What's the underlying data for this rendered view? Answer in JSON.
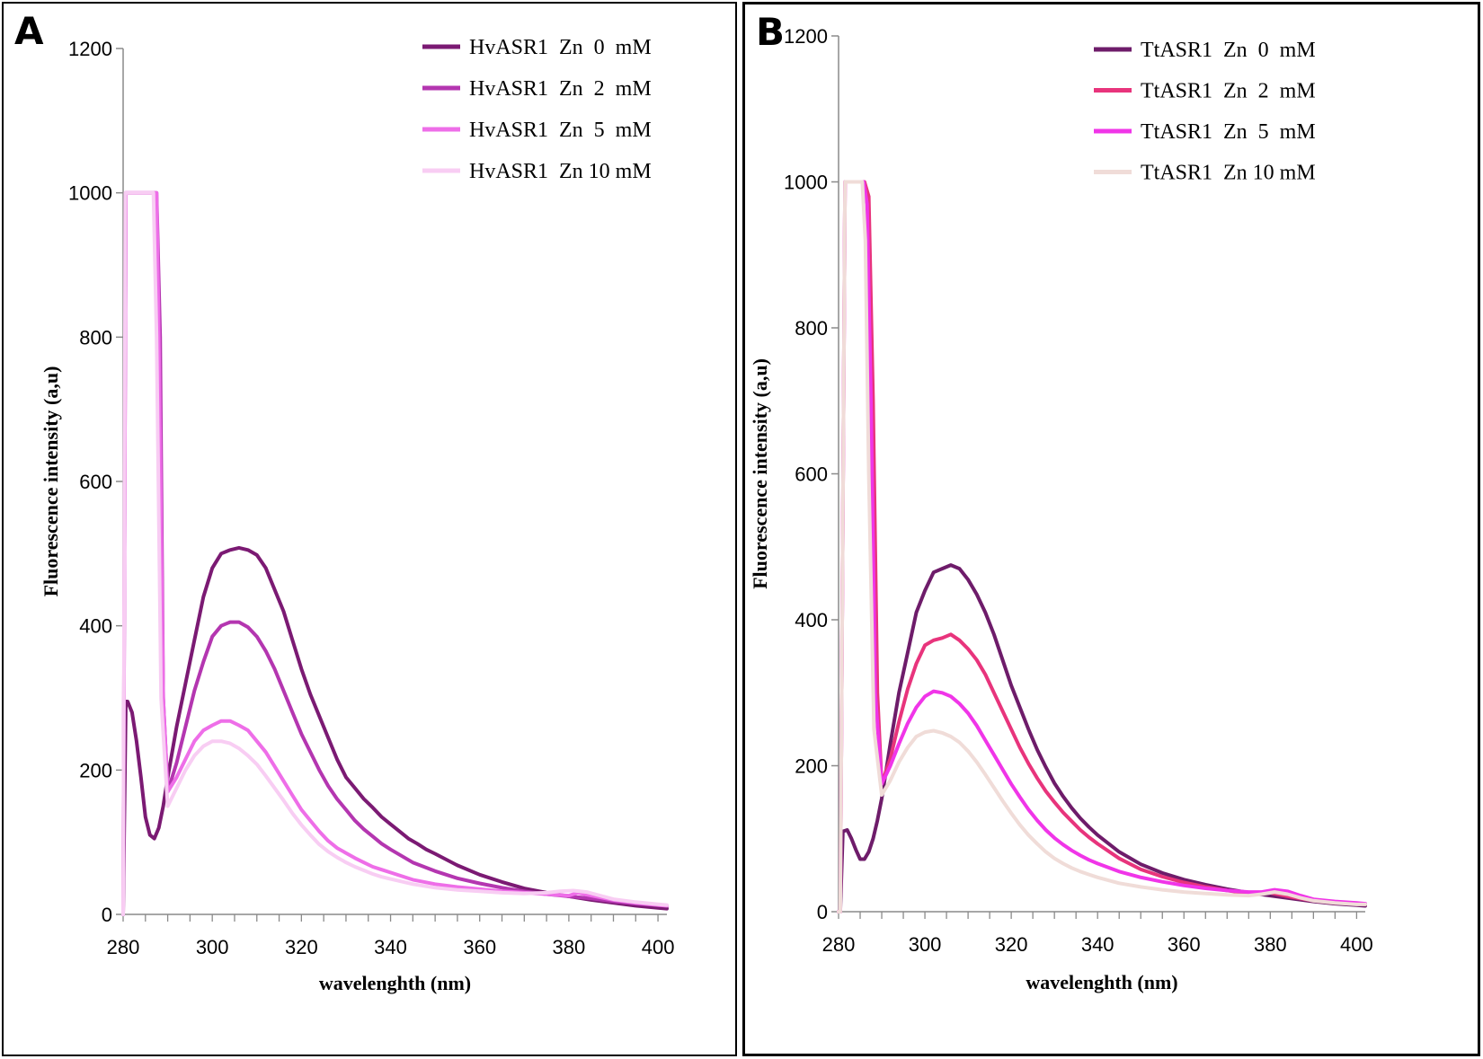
{
  "chart_data": [
    {
      "panel": "A",
      "type": "line",
      "title": "",
      "xlabel": "wavelenghth (nm)",
      "ylabel": "Fluorescence  intensity (a,u)",
      "xlim": [
        280,
        402
      ],
      "ylim": [
        0,
        1200
      ],
      "xticks": [
        280,
        300,
        320,
        340,
        360,
        380,
        400
      ],
      "yticks": [
        0,
        200,
        400,
        600,
        800,
        1000,
        1200
      ],
      "legend_position": "top-right",
      "series": [
        {
          "name": "HvASR1  Zn  0  mM",
          "color": "#7b1a73",
          "x": [
            280,
            280.6,
            281,
            282,
            283,
            284,
            285,
            286,
            287,
            288,
            289,
            290,
            292,
            294,
            296,
            298,
            300,
            302,
            304,
            306,
            308,
            310,
            312,
            314,
            316,
            318,
            320,
            322,
            324,
            326,
            328,
            330,
            332,
            334,
            336,
            338,
            340,
            342,
            344,
            346,
            348,
            350,
            355,
            360,
            365,
            370,
            375,
            380,
            385,
            390,
            395,
            400,
            402
          ],
          "y": [
            0,
            295,
            295,
            280,
            240,
            190,
            135,
            110,
            105,
            120,
            150,
            190,
            260,
            320,
            380,
            440,
            480,
            500,
            505,
            508,
            505,
            498,
            480,
            450,
            420,
            380,
            340,
            305,
            275,
            245,
            215,
            190,
            175,
            160,
            148,
            135,
            125,
            115,
            105,
            98,
            90,
            84,
            68,
            55,
            45,
            36,
            30,
            25,
            20,
            16,
            12,
            9,
            8
          ]
        },
        {
          "name": "HvASR1  Zn  2  mM",
          "color": "#b436b0",
          "x": [
            280,
            280.6,
            282,
            284,
            286,
            287.5,
            288.3,
            289,
            290,
            292,
            294,
            296,
            298,
            300,
            302,
            304,
            306,
            308,
            310,
            312,
            314,
            316,
            318,
            320,
            322,
            324,
            326,
            328,
            330,
            332,
            334,
            336,
            338,
            340,
            345,
            350,
            355,
            360,
            365,
            370,
            375,
            380,
            385,
            390,
            395,
            400,
            402
          ],
          "y": [
            0,
            1000,
            1000,
            1000,
            1000,
            1000,
            800,
            300,
            170,
            210,
            260,
            310,
            350,
            385,
            400,
            405,
            405,
            398,
            385,
            365,
            340,
            310,
            280,
            250,
            225,
            200,
            178,
            160,
            145,
            130,
            118,
            108,
            98,
            90,
            72,
            60,
            50,
            43,
            37,
            32,
            28,
            25,
            22,
            18,
            15,
            13,
            12
          ]
        },
        {
          "name": "HvASR1  Zn  5  mM",
          "color": "#ee6ee8",
          "x": [
            280,
            280.6,
            282,
            284,
            286,
            287.5,
            288,
            289,
            290,
            292,
            294,
            296,
            298,
            300,
            302,
            304,
            306,
            308,
            310,
            312,
            314,
            316,
            318,
            320,
            322,
            324,
            326,
            328,
            330,
            332,
            334,
            336,
            338,
            340,
            345,
            350,
            355,
            360,
            365,
            370,
            375,
            380,
            382,
            385,
            390,
            395,
            400,
            402
          ],
          "y": [
            0,
            1000,
            1000,
            1000,
            1000,
            1000,
            800,
            300,
            170,
            190,
            215,
            240,
            255,
            262,
            268,
            268,
            262,
            255,
            240,
            225,
            205,
            185,
            165,
            145,
            130,
            115,
            102,
            92,
            85,
            78,
            72,
            66,
            62,
            58,
            48,
            42,
            38,
            35,
            32,
            30,
            28,
            26,
            30,
            26,
            20,
            16,
            13,
            12
          ]
        },
        {
          "name": "HvASR1  Zn 10 mM",
          "color": "#f8cdf3",
          "x": [
            280,
            280.5,
            282,
            284,
            286,
            286.8,
            287.5,
            288.5,
            290,
            292,
            294,
            296,
            298,
            300,
            302,
            304,
            306,
            308,
            310,
            312,
            314,
            316,
            318,
            320,
            322,
            324,
            326,
            328,
            330,
            332,
            334,
            336,
            338,
            340,
            345,
            350,
            355,
            360,
            365,
            370,
            375,
            378,
            381,
            384,
            387,
            390,
            395,
            400,
            402
          ],
          "y": [
            0,
            1000,
            1000,
            1000,
            1000,
            1000,
            800,
            300,
            150,
            175,
            200,
            220,
            233,
            240,
            240,
            237,
            230,
            220,
            208,
            192,
            175,
            158,
            140,
            124,
            110,
            97,
            87,
            79,
            72,
            66,
            61,
            56,
            52,
            49,
            42,
            37,
            34,
            32,
            30,
            29,
            30,
            32,
            33,
            31,
            26,
            21,
            17,
            14,
            13
          ]
        }
      ]
    },
    {
      "panel": "B",
      "type": "line",
      "title": "",
      "xlabel": "wavelenghth (nm)",
      "ylabel": "Fluorescence  intensity (a,u)",
      "xlim": [
        280,
        402
      ],
      "ylim": [
        0,
        1200
      ],
      "xticks": [
        280,
        300,
        320,
        340,
        360,
        380,
        400
      ],
      "yticks": [
        0,
        200,
        400,
        600,
        800,
        1000,
        1200
      ],
      "legend_position": "top-right",
      "series": [
        {
          "name": "TtASR1  Zn  0  mM",
          "color": "#6e1c6a",
          "x": [
            280,
            280.4,
            281,
            282,
            283,
            284,
            285,
            286,
            287,
            288,
            289,
            290,
            292,
            294,
            296,
            298,
            300,
            302,
            304,
            306,
            308,
            310,
            312,
            314,
            316,
            318,
            320,
            322,
            324,
            326,
            328,
            330,
            332,
            334,
            336,
            338,
            340,
            345,
            350,
            355,
            360,
            365,
            370,
            375,
            380,
            385,
            390,
            395,
            400,
            402
          ],
          "y": [
            0,
            0,
            110,
            112,
            100,
            85,
            72,
            72,
            82,
            100,
            125,
            155,
            230,
            300,
            355,
            410,
            440,
            465,
            470,
            475,
            470,
            455,
            435,
            410,
            380,
            345,
            310,
            280,
            250,
            222,
            198,
            176,
            158,
            142,
            128,
            116,
            105,
            82,
            65,
            53,
            44,
            37,
            31,
            26,
            22,
            18,
            14,
            11,
            9,
            8
          ]
        },
        {
          "name": "TtASR1  Zn  2  mM",
          "color": "#e8347c",
          "x": [
            280,
            280.4,
            281.5,
            284,
            286,
            287,
            288,
            289,
            290,
            292,
            294,
            296,
            298,
            300,
            302,
            304,
            306,
            308,
            310,
            312,
            314,
            316,
            318,
            320,
            322,
            324,
            326,
            328,
            330,
            332,
            334,
            336,
            338,
            340,
            345,
            350,
            355,
            360,
            365,
            370,
            375,
            380,
            385,
            390,
            395,
            400,
            402
          ],
          "y": [
            0,
            0,
            1000,
            1000,
            1000,
            980,
            700,
            300,
            175,
            210,
            260,
            305,
            340,
            365,
            372,
            375,
            380,
            372,
            360,
            345,
            325,
            300,
            275,
            250,
            225,
            203,
            183,
            165,
            150,
            136,
            124,
            112,
            102,
            93,
            73,
            58,
            48,
            40,
            34,
            29,
            25,
            26,
            20,
            15,
            12,
            11,
            10
          ]
        },
        {
          "name": "TtASR1  Zn  5  mM",
          "color": "#f035e8",
          "x": [
            280,
            280.4,
            281.5,
            284,
            285.8,
            286.6,
            287.5,
            288.5,
            290,
            292,
            294,
            296,
            298,
            300,
            302,
            304,
            306,
            308,
            310,
            312,
            314,
            316,
            318,
            320,
            322,
            324,
            326,
            328,
            330,
            332,
            334,
            336,
            338,
            340,
            345,
            350,
            355,
            360,
            365,
            370,
            375,
            378,
            381,
            384,
            387,
            390,
            395,
            400,
            402
          ],
          "y": [
            0,
            0,
            1000,
            1000,
            1000,
            970,
            700,
            300,
            175,
            200,
            230,
            258,
            280,
            295,
            302,
            300,
            295,
            285,
            272,
            255,
            235,
            215,
            195,
            175,
            157,
            140,
            125,
            112,
            101,
            92,
            84,
            77,
            71,
            66,
            55,
            47,
            41,
            36,
            32,
            29,
            27,
            27,
            30,
            28,
            22,
            17,
            14,
            12,
            11
          ]
        },
        {
          "name": "TtASR1  Zn 10 mM",
          "color": "#f0dcd8",
          "x": [
            280,
            280.4,
            281.5,
            284,
            285.5,
            286.2,
            287,
            288.2,
            290,
            292,
            294,
            296,
            298,
            300,
            302,
            304,
            306,
            308,
            310,
            312,
            314,
            316,
            318,
            320,
            322,
            324,
            326,
            328,
            330,
            332,
            334,
            336,
            338,
            340,
            345,
            350,
            355,
            360,
            365,
            370,
            375,
            378,
            381,
            384,
            387,
            390,
            395,
            400,
            402
          ],
          "y": [
            0,
            0,
            1000,
            1000,
            1000,
            920,
            600,
            250,
            160,
            180,
            205,
            225,
            240,
            246,
            248,
            245,
            240,
            232,
            220,
            205,
            188,
            170,
            152,
            135,
            119,
            105,
            93,
            82,
            73,
            66,
            60,
            55,
            51,
            47,
            39,
            34,
            30,
            27,
            25,
            23,
            22,
            24,
            27,
            24,
            19,
            15,
            12,
            10,
            10
          ]
        }
      ]
    }
  ]
}
